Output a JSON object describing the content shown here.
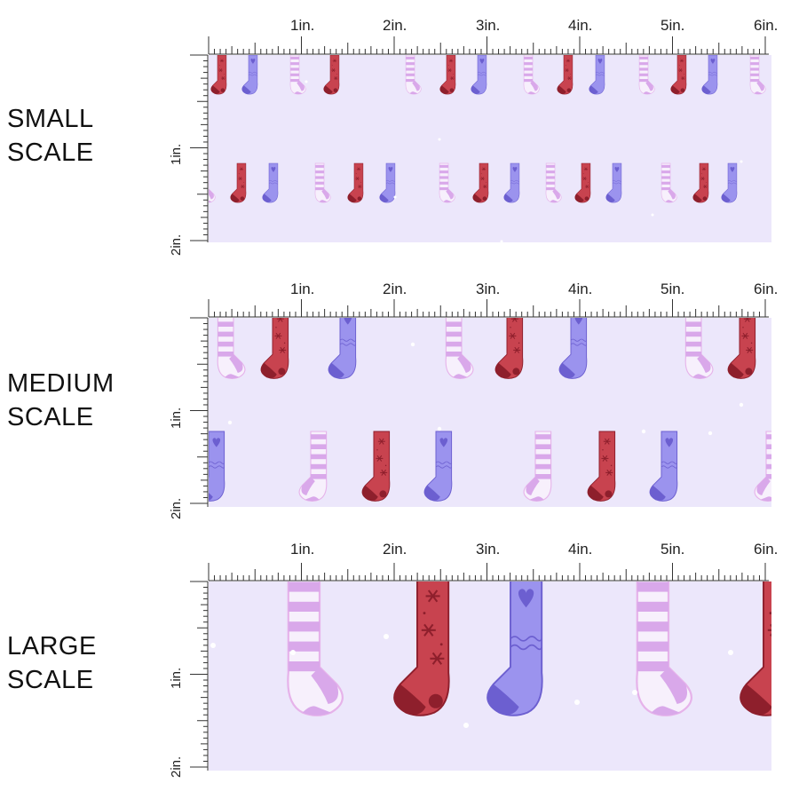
{
  "colors": {
    "background": "#ece7fb",
    "stocking_red": "#c8434f",
    "stocking_red_dark": "#8e1f2c",
    "stocking_lavender": "#9b93ee",
    "stocking_lavender_dark": "#6c5fd0",
    "stripe_pink": "#d9a8ea",
    "stripe_white": "#f7f0fc",
    "outline_pink": "#e6b3ea",
    "snow": "#ffffff",
    "ruler": "#333333"
  },
  "ruler": {
    "inch_labels": [
      "1in.",
      "2in.",
      "3in.",
      "4in.",
      "5in.",
      "6in."
    ],
    "vertical_labels": [
      "1in.",
      "2in."
    ]
  },
  "sections": [
    {
      "id": "small",
      "label_lines": [
        "SMALL",
        "SCALE"
      ],
      "stocking_scale": 0.45
    },
    {
      "id": "medium",
      "label_lines": [
        "MEDIUM",
        "SCALE"
      ],
      "stocking_scale": 0.8
    },
    {
      "id": "large",
      "label_lines": [
        "LARGE",
        "SCALE"
      ],
      "stocking_scale": 1.6
    }
  ],
  "stocking_icons": [
    "red-stocking-icon",
    "lavender-stocking-icon",
    "striped-stocking-icon"
  ]
}
